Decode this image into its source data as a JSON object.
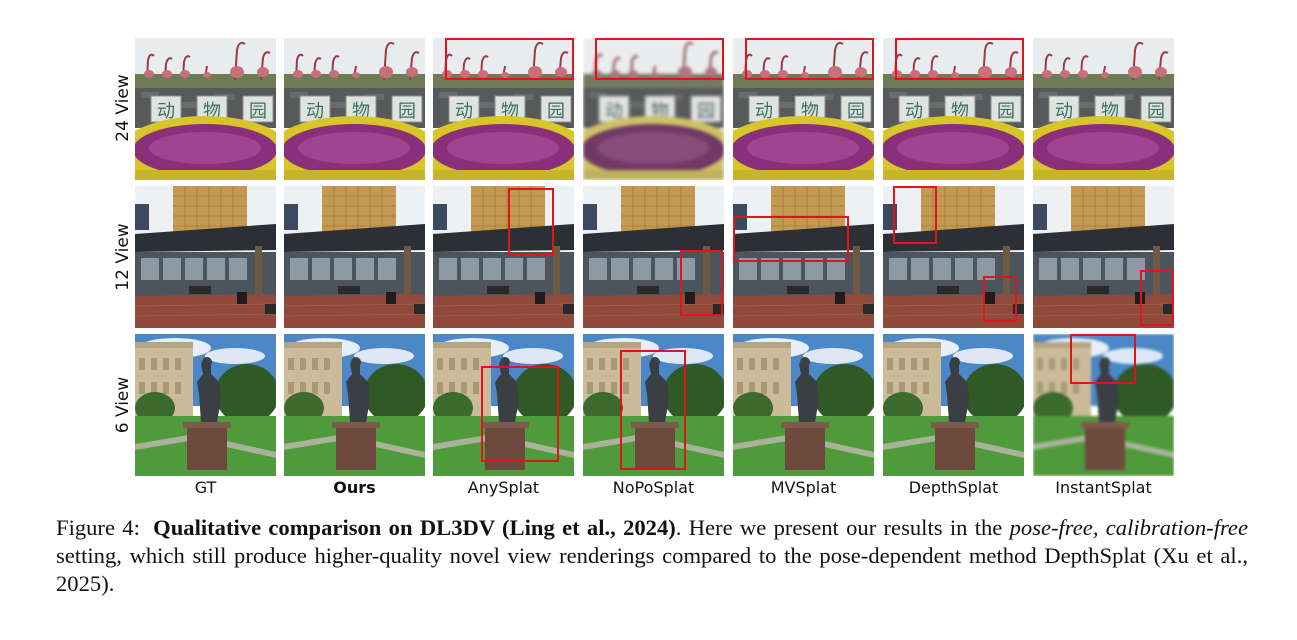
{
  "figure": {
    "rows": [
      {
        "label": "24 View"
      },
      {
        "label": "12 View"
      },
      {
        "label": "6 View"
      }
    ],
    "columns": [
      {
        "label": "GT",
        "bold": false
      },
      {
        "label": "Ours",
        "bold": true
      },
      {
        "label": "AnySplat",
        "bold": false
      },
      {
        "label": "NoPoSplat",
        "bold": false
      },
      {
        "label": "MVSplat",
        "bold": false
      },
      {
        "label": "DepthSplat",
        "bold": false
      },
      {
        "label": "InstantSplat",
        "bold": false
      }
    ],
    "sign_text": [
      "动",
      "物",
      "园"
    ]
  },
  "caption": {
    "label": "Figure 4:",
    "title": "Qualitative comparison on DL3DV (Ling et al., 2024)",
    "text_1": ". Here we present our results in the ",
    "emphasis": "pose-free, calibration-free",
    "text_2": " setting, which still produce higher-quality novel view renderings compared to the pose-dependent method DepthSplat (Xu et al., 2025)."
  }
}
